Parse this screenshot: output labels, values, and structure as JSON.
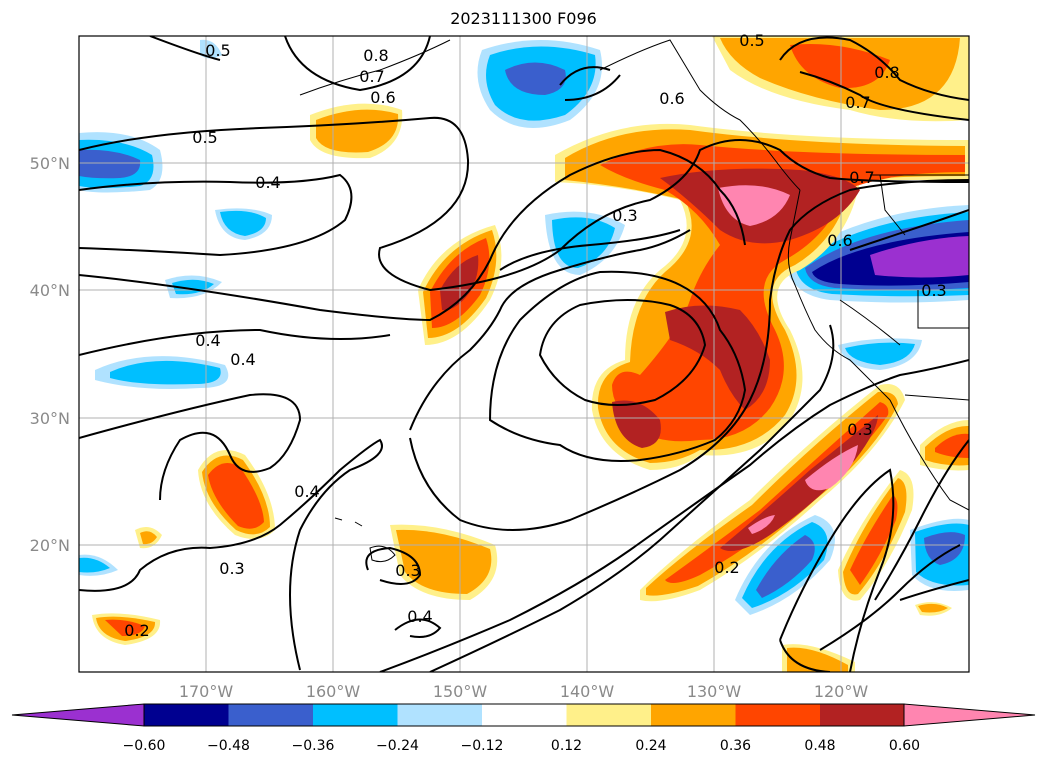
{
  "title": "2023111300 F096",
  "map": {
    "lon_range": [
      -180,
      -110
    ],
    "lat_range": [
      10,
      60
    ],
    "grid": true,
    "lon_ticks": [
      "170°W",
      "160°W",
      "150°W",
      "140°W",
      "130°W",
      "120°W"
    ],
    "lat_ticks": [
      "50°N",
      "40°N",
      "30°N",
      "20°N"
    ],
    "contour_labels": [
      "0.5",
      "0.8",
      "0.7",
      "0.6",
      "0.5",
      "0.4",
      "0.3",
      "0.4",
      "0.4",
      "0.4",
      "0.3",
      "0.3",
      "0.4",
      "0.2",
      "0.2",
      "0.3",
      "0.6",
      "0.7",
      "0.5",
      "0.8",
      "0.7",
      "0.3",
      "0.6"
    ]
  },
  "colorbar": {
    "tick_labels": [
      "−0.60",
      "−0.48",
      "−0.36",
      "−0.24",
      "−0.12",
      "0.12",
      "0.24",
      "0.36",
      "0.48",
      "0.60"
    ],
    "extend": "both",
    "colors": [
      "#9b30d0",
      "#000090",
      "#3a5fcd",
      "#00bfff",
      "#b0e2ff",
      "#ffffff",
      "#fff08a",
      "#ffa500",
      "#ff4500",
      "#b22222",
      "#ff85b0",
      "#ff85b0"
    ]
  }
}
